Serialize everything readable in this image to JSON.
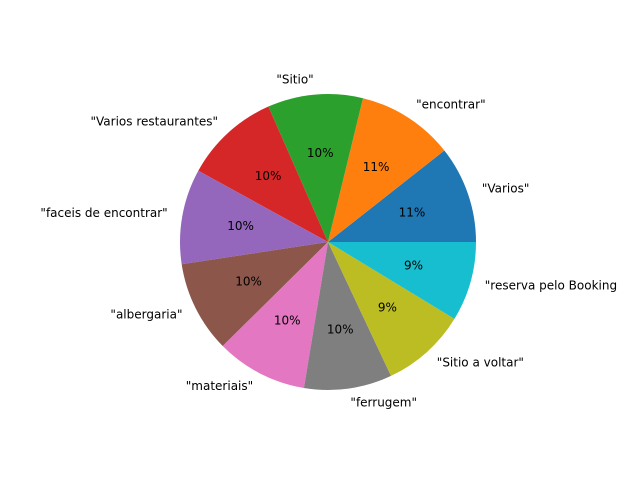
{
  "chart_data": {
    "type": "pie",
    "start_angle_deg": 0,
    "direction": "counterclockwise",
    "slices": [
      {
        "label": "\"Varios\"",
        "pct_label": "11%",
        "value": 10.6,
        "color": "#1f77b4"
      },
      {
        "label": "\"encontrar\"",
        "pct_label": "11%",
        "value": 10.6,
        "color": "#ff7f0e"
      },
      {
        "label": "\"Sitio\"",
        "pct_label": "10%",
        "value": 10.4,
        "color": "#2ca02c"
      },
      {
        "label": "\"Varios restaurantes\"",
        "pct_label": "10%",
        "value": 10.4,
        "color": "#d62728"
      },
      {
        "label": "\"faceis de encontrar\"",
        "pct_label": "10%",
        "value": 10.4,
        "color": "#9467bd"
      },
      {
        "label": "\"albergaria\"",
        "pct_label": "10%",
        "value": 10.0,
        "color": "#8c564b"
      },
      {
        "label": "\"materiais\"",
        "pct_label": "10%",
        "value": 10.0,
        "color": "#e377c2"
      },
      {
        "label": "\"ferrugem\"",
        "pct_label": "10%",
        "value": 9.6,
        "color": "#7f7f7f"
      },
      {
        "label": "\"Sitio a voltar\"",
        "pct_label": "9%",
        "value": 9.3,
        "color": "#bcbd22"
      },
      {
        "label": "\"reserva pelo Booking",
        "pct_label": "9%",
        "value": 8.7,
        "color": "#17becf"
      }
    ]
  }
}
